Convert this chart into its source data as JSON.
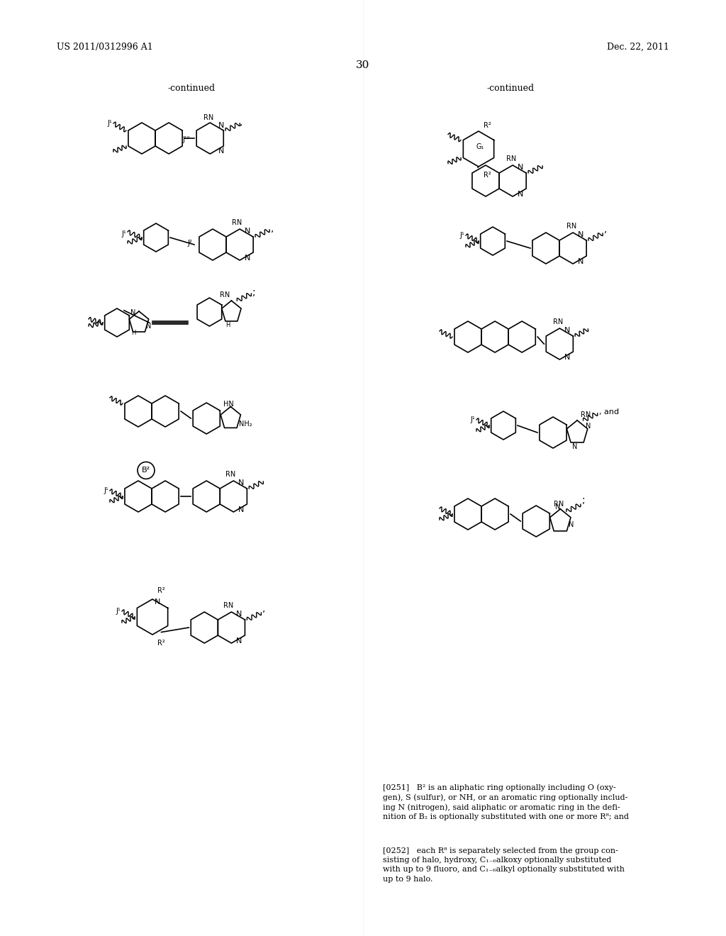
{
  "page_number": "30",
  "header_left": "US 2011/0312996 A1",
  "header_right": "Dec. 22, 2011",
  "continued_left": "-continued",
  "continued_right": "-continued",
  "background_color": "#ffffff",
  "text_color": "#000000",
  "paragraph_0251": "[0251]   B² is an aliphatic ring optionally including O (oxygen), S (sulfur), or NH, or an aromatic ring optionally including N (nitrogen), said aliphatic or aromatic ring in the definition of B₂ is optionally substituted with one or more R⁸; and",
  "paragraph_0252": "[0252]   each R⁸ is separately selected from the group consisting of halo, hydroxy, C₁₋₆alkoxy optionally substituted with up to 9 fluoro, and C₁₋₆alkyl optionally substituted with up to 9 halo."
}
